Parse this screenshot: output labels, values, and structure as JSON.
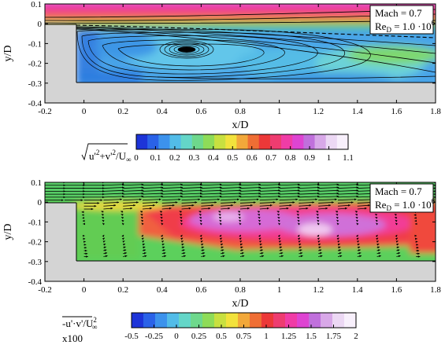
{
  "chart_data": [
    {
      "type": "heatmap",
      "panel": "top",
      "field": "turbulent velocity magnitude with mean streamlines",
      "xlabel": "x/D",
      "ylabel": "y/D",
      "xlim": [
        -0.2,
        1.8
      ],
      "ylim": [
        -0.4,
        0.1
      ],
      "xticks": [
        "-0.2",
        "0",
        "0.2",
        "0.4",
        "0.6",
        "0.8",
        "1",
        "1.2",
        "1.4",
        "1.6",
        "1.8"
      ],
      "yticks": [
        "0.1",
        "0",
        "-0.1",
        "-0.2",
        "-0.3",
        "-0.4"
      ],
      "annotation": [
        "Mach = 0.7",
        "Re",
        "D",
        " = 1.0 ·10",
        "6"
      ],
      "cavity": {
        "x_start": 0,
        "x_end": 1.8,
        "floor_y": -0.3,
        "lip_y": 0
      },
      "vortex_center": {
        "x": 0.55,
        "y": -0.12
      },
      "colorbar": {
        "label_parts": [
          "u'",
          "2",
          "+v'",
          "2",
          "/U",
          "∞"
        ],
        "ticks": [
          "0",
          "0.1",
          "0.2",
          "0.3",
          "0.4",
          "0.5",
          "0.6",
          "0.7",
          "0.8",
          "0.9",
          "1",
          "1.1"
        ],
        "range": [
          0,
          1.1
        ]
      }
    },
    {
      "type": "heatmap",
      "panel": "bottom",
      "field": "Reynolds shear stress with mean velocity vectors",
      "xlabel": "x/D",
      "ylabel": "y/D",
      "xlim": [
        -0.2,
        1.8
      ],
      "ylim": [
        -0.4,
        0.1
      ],
      "xticks": [
        "-0.2",
        "0",
        "0.2",
        "0.4",
        "0.6",
        "0.8",
        "1",
        "1.2",
        "1.4",
        "1.6",
        "1.8"
      ],
      "yticks": [
        "0.1",
        "0",
        "-0.1",
        "-0.2",
        "-0.3",
        "-0.4"
      ],
      "annotation": [
        "Mach = 0.7",
        "Re",
        "D",
        " = 1.0 ·10",
        "6"
      ],
      "cavity": {
        "x_start": 0,
        "x_end": 1.8,
        "floor_y": -0.3,
        "lip_y": 0
      },
      "colorbar": {
        "label_parts": [
          "-u'·v'/U",
          "2",
          "∞",
          "x100"
        ],
        "ticks": [
          "-0.5",
          "-0.25",
          "0",
          "0.25",
          "0.5",
          "0.75",
          "1",
          "1.25",
          "1.5",
          "1.75",
          "2"
        ],
        "range": [
          -0.5,
          2
        ]
      }
    }
  ]
}
